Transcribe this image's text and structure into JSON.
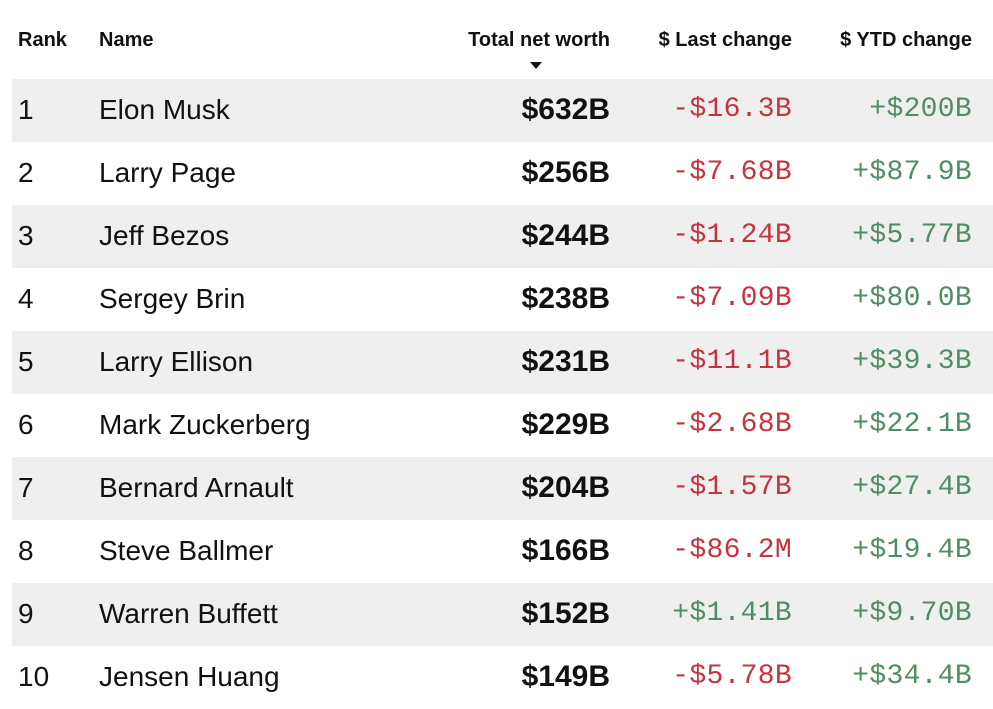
{
  "header": {
    "rank": "Rank",
    "name": "Name",
    "net_worth": "Total net worth",
    "last_change": "$ Last change",
    "ytd_change": "$ YTD change"
  },
  "rows": [
    {
      "rank": "1",
      "name": "Elon Musk",
      "net_worth": "$632B",
      "last_change": "-$16.3B",
      "ytd_change": "+$200B"
    },
    {
      "rank": "2",
      "name": "Larry Page",
      "net_worth": "$256B",
      "last_change": "-$7.68B",
      "ytd_change": "+$87.9B"
    },
    {
      "rank": "3",
      "name": "Jeff Bezos",
      "net_worth": "$244B",
      "last_change": "-$1.24B",
      "ytd_change": "+$5.77B"
    },
    {
      "rank": "4",
      "name": "Sergey Brin",
      "net_worth": "$238B",
      "last_change": "-$7.09B",
      "ytd_change": "+$80.0B"
    },
    {
      "rank": "5",
      "name": "Larry Ellison",
      "net_worth": "$231B",
      "last_change": "-$11.1B",
      "ytd_change": "+$39.3B"
    },
    {
      "rank": "6",
      "name": "Mark Zuckerberg",
      "net_worth": "$229B",
      "last_change": "-$2.68B",
      "ytd_change": "+$22.1B"
    },
    {
      "rank": "7",
      "name": "Bernard Arnault",
      "net_worth": "$204B",
      "last_change": "-$1.57B",
      "ytd_change": "+$27.4B"
    },
    {
      "rank": "8",
      "name": "Steve Ballmer",
      "net_worth": "$166B",
      "last_change": "-$86.2M",
      "ytd_change": "+$19.4B"
    },
    {
      "rank": "9",
      "name": "Warren Buffett",
      "net_worth": "$152B",
      "last_change": "+$1.41B",
      "ytd_change": "+$9.70B"
    },
    {
      "rank": "10",
      "name": "Jensen Huang",
      "net_worth": "$149B",
      "last_change": "-$5.78B",
      "ytd_change": "+$34.4B"
    }
  ],
  "colors": {
    "negative": "#c3343f",
    "positive": "#4f8d62",
    "row_stripe": "#efefef"
  },
  "icons": {
    "sort": "sort-descending-icon"
  }
}
